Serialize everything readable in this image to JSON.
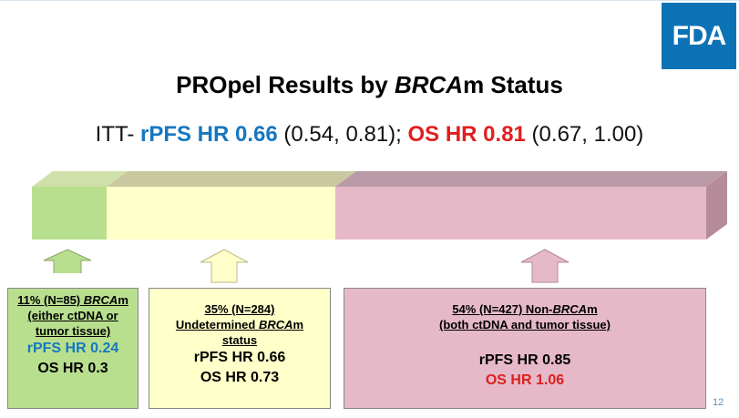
{
  "logo": {
    "text": "FDA"
  },
  "title": {
    "part1": "PROpel Results by ",
    "italic": "BRCA",
    "part2": "m Status"
  },
  "itt": {
    "prefix": "ITT- ",
    "rpfs_label": "rPFS HR ",
    "rpfs_value": "0.66",
    "rpfs_ci": " (0.54, 0.81); ",
    "os_label": "OS HR ",
    "os_value": "0.81",
    "os_ci": " (0.67, 1.00)"
  },
  "groups": [
    {
      "line1a": "11% (N=85) ",
      "line1i": "BRCA",
      "line1b": "m",
      "line2": "(either ctDNA or",
      "line3": "tumor tissue)",
      "rpfs": "rPFS HR 0.24",
      "os": "OS HR 0.3",
      "color": "#b8df8e"
    },
    {
      "line1": "35% (N=284)",
      "line2a": "Undetermined ",
      "line2i": "BRCA",
      "line2b": "m",
      "line3": "status",
      "rpfs": "rPFS HR 0.66",
      "os": "OS HR 0.73",
      "color": "#ffffc9"
    },
    {
      "line1a": "54% (N=427) Non-",
      "line1i": "BRCA",
      "line1b": "m",
      "line2": "(both ctDNA and tumor tissue)",
      "rpfs": "rPFS HR 0.85",
      "os": "OS HR 1.06",
      "color": "#e6b9c8"
    }
  ],
  "page_number": "12",
  "colors": {
    "fda_blue": "#0b72b6",
    "rpfs_blue": "#1577c0",
    "os_red": "#e01e1e",
    "green": "#b8df8e",
    "yellow": "#ffffc9",
    "pink": "#e6b9c8"
  }
}
